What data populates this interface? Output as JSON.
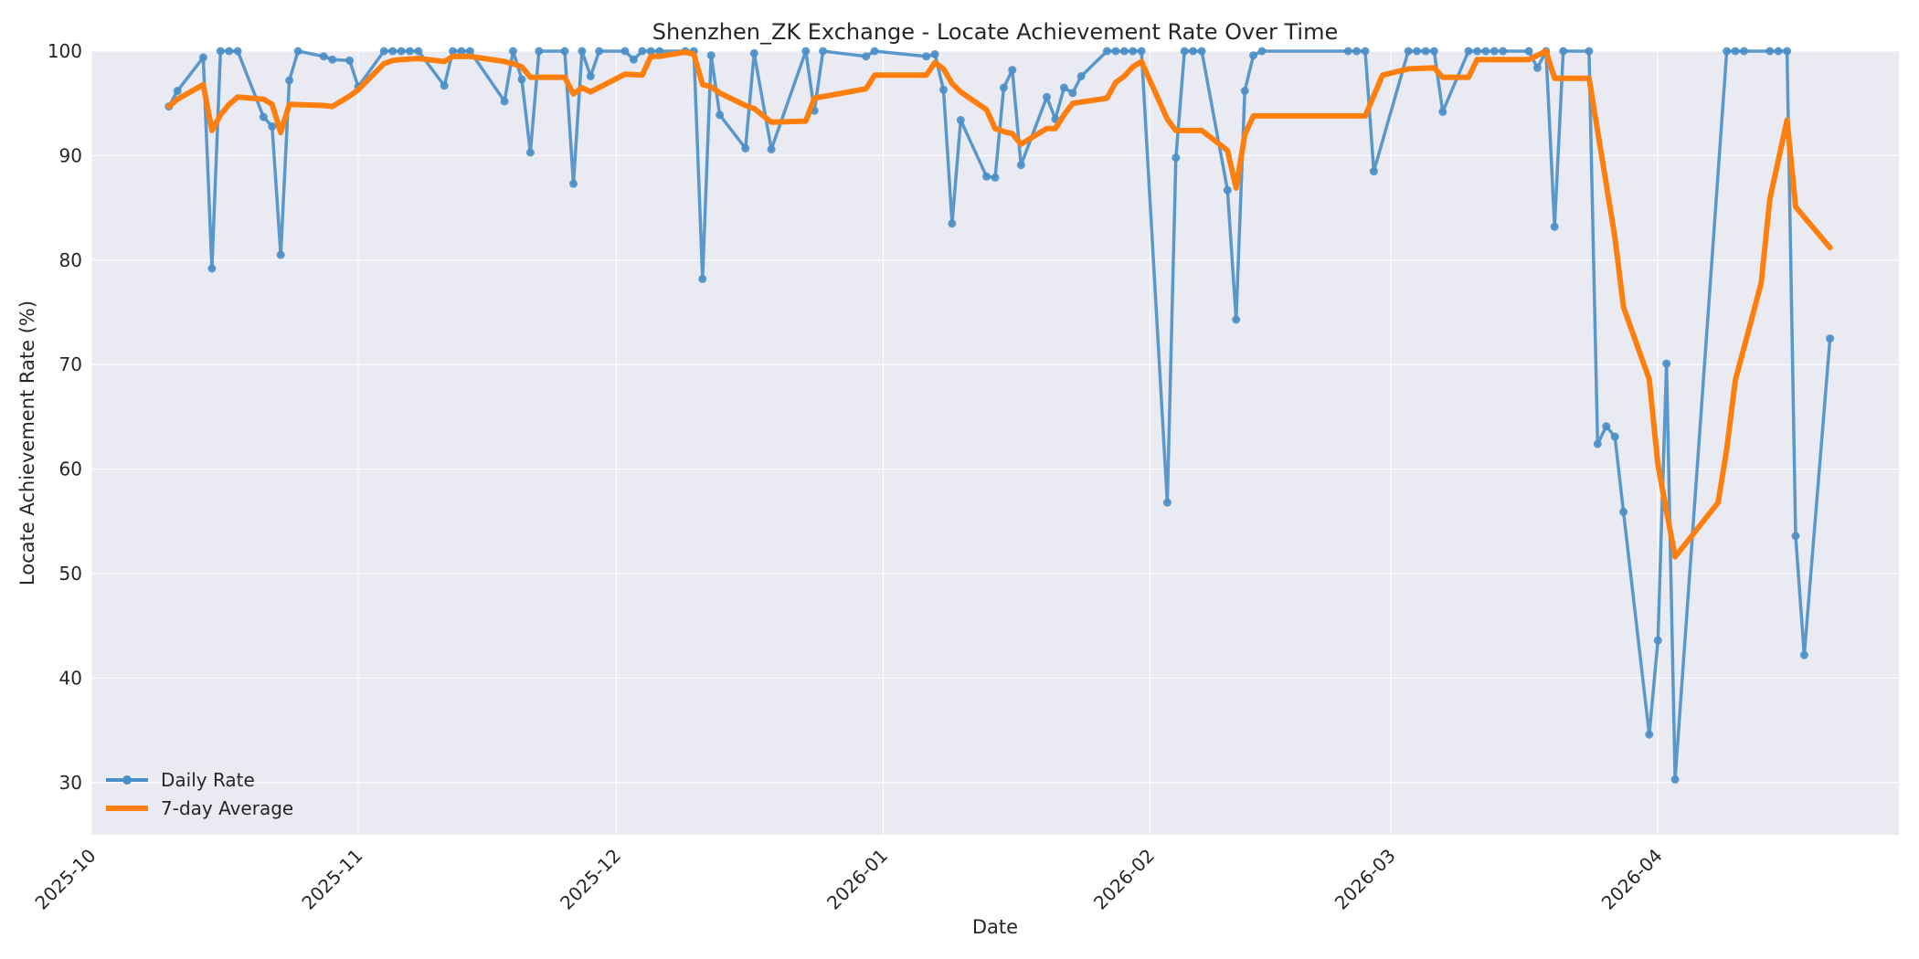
{
  "chart_data": {
    "type": "line",
    "title": "Shenzhen_ZK Exchange - Locate Achievement Rate Over Time",
    "xlabel": "Date",
    "ylabel": "Locate Achievement Rate (%)",
    "xlim": [
      "2025-10-01",
      "2026-04-29"
    ],
    "ylim": [
      25,
      100
    ],
    "x_ticks": [
      "2025-10",
      "2025-11",
      "2025-12",
      "2026-01",
      "2026-02",
      "2026-03",
      "2026-04"
    ],
    "y_ticks": [
      30,
      40,
      50,
      60,
      70,
      80,
      90,
      100
    ],
    "grid": true,
    "legend_position": "lower-left",
    "colors": {
      "daily": "#4a8fc7",
      "average": "#ff7f0e",
      "plot_bg": "#eaeaf2",
      "grid": "#ffffff"
    },
    "series": [
      {
        "name": "Daily Rate",
        "style": "line-with-markers",
        "points": [
          [
            "2025-10-10",
            94.7
          ],
          [
            "2025-10-11",
            96.2
          ],
          [
            "2025-10-14",
            99.4
          ],
          [
            "2025-10-15",
            79.2
          ],
          [
            "2025-10-16",
            100
          ],
          [
            "2025-10-17",
            100
          ],
          [
            "2025-10-18",
            100
          ],
          [
            "2025-10-21",
            93.7
          ],
          [
            "2025-10-22",
            92.8
          ],
          [
            "2025-10-23",
            80.5
          ],
          [
            "2025-10-24",
            97.2
          ],
          [
            "2025-10-25",
            100
          ],
          [
            "2025-10-28",
            99.5
          ],
          [
            "2025-10-29",
            99.2
          ],
          [
            "2025-10-31",
            99.1
          ],
          [
            "2025-11-01",
            96.6
          ],
          [
            "2025-11-04",
            100
          ],
          [
            "2025-11-05",
            100
          ],
          [
            "2025-11-06",
            100
          ],
          [
            "2025-11-07",
            100
          ],
          [
            "2025-11-08",
            100
          ],
          [
            "2025-11-11",
            96.7
          ],
          [
            "2025-11-12",
            100
          ],
          [
            "2025-11-13",
            100
          ],
          [
            "2025-11-14",
            100
          ],
          [
            "2025-11-18",
            95.2
          ],
          [
            "2025-11-19",
            100
          ],
          [
            "2025-11-20",
            97.3
          ],
          [
            "2025-11-21",
            90.3
          ],
          [
            "2025-11-22",
            100
          ],
          [
            "2025-11-25",
            100
          ],
          [
            "2025-11-26",
            87.3
          ],
          [
            "2025-11-27",
            100
          ],
          [
            "2025-11-28",
            97.6
          ],
          [
            "2025-11-29",
            100
          ],
          [
            "2025-12-02",
            100
          ],
          [
            "2025-12-03",
            99.2
          ],
          [
            "2025-12-04",
            100
          ],
          [
            "2025-12-05",
            100
          ],
          [
            "2025-12-06",
            100
          ],
          [
            "2025-12-09",
            100
          ],
          [
            "2025-12-10",
            100
          ],
          [
            "2025-12-11",
            78.2
          ],
          [
            "2025-12-12",
            99.6
          ],
          [
            "2025-12-13",
            93.9
          ],
          [
            "2025-12-16",
            90.7
          ],
          [
            "2025-12-17",
            99.8
          ],
          [
            "2025-12-19",
            90.6
          ],
          [
            "2025-12-23",
            100
          ],
          [
            "2025-12-24",
            94.3
          ],
          [
            "2025-12-25",
            100
          ],
          [
            "2025-12-30",
            99.5
          ],
          [
            "2025-12-31",
            100
          ],
          [
            "2026-01-06",
            99.5
          ],
          [
            "2026-01-07",
            99.7
          ],
          [
            "2026-01-08",
            96.3
          ],
          [
            "2026-01-09",
            83.5
          ],
          [
            "2026-01-10",
            93.4
          ],
          [
            "2026-01-13",
            88
          ],
          [
            "2026-01-14",
            87.9
          ],
          [
            "2026-01-15",
            96.5
          ],
          [
            "2026-01-16",
            98.2
          ],
          [
            "2026-01-17",
            89.1
          ],
          [
            "2026-01-20",
            95.6
          ],
          [
            "2026-01-21",
            93.5
          ],
          [
            "2026-01-22",
            96.5
          ],
          [
            "2026-01-23",
            96
          ],
          [
            "2026-01-24",
            97.6
          ],
          [
            "2026-01-27",
            100
          ],
          [
            "2026-01-28",
            100
          ],
          [
            "2026-01-29",
            100
          ],
          [
            "2026-01-30",
            100
          ],
          [
            "2026-01-31",
            100
          ],
          [
            "2026-02-03",
            56.8
          ],
          [
            "2026-02-04",
            89.8
          ],
          [
            "2026-02-05",
            100
          ],
          [
            "2026-02-06",
            100
          ],
          [
            "2026-02-07",
            100
          ],
          [
            "2026-02-10",
            86.7
          ],
          [
            "2026-02-11",
            74.3
          ],
          [
            "2026-02-12",
            96.2
          ],
          [
            "2026-02-13",
            99.6
          ],
          [
            "2026-02-14",
            100
          ],
          [
            "2026-02-24",
            100
          ],
          [
            "2026-02-25",
            100
          ],
          [
            "2026-02-26",
            100
          ],
          [
            "2026-02-27",
            88.5
          ],
          [
            "2026-03-03",
            100
          ],
          [
            "2026-03-04",
            100
          ],
          [
            "2026-03-05",
            100
          ],
          [
            "2026-03-06",
            100
          ],
          [
            "2026-03-07",
            94.2
          ],
          [
            "2026-03-10",
            100
          ],
          [
            "2026-03-11",
            100
          ],
          [
            "2026-03-12",
            100
          ],
          [
            "2026-03-13",
            100
          ],
          [
            "2026-03-14",
            100
          ],
          [
            "2026-03-17",
            100
          ],
          [
            "2026-03-18",
            98.4
          ],
          [
            "2026-03-19",
            100
          ],
          [
            "2026-03-20",
            83.2
          ],
          [
            "2026-03-21",
            100
          ],
          [
            "2026-03-24",
            100
          ],
          [
            "2026-03-25",
            62.4
          ],
          [
            "2026-03-26",
            64.1
          ],
          [
            "2026-03-27",
            63.1
          ],
          [
            "2026-03-28",
            55.9
          ],
          [
            "2026-03-31",
            34.6
          ],
          [
            "2026-04-01",
            43.6
          ],
          [
            "2026-04-02",
            70.1
          ],
          [
            "2026-04-03",
            30.3
          ],
          [
            "2026-04-09",
            100
          ],
          [
            "2026-04-10",
            100
          ],
          [
            "2026-04-11",
            100
          ],
          [
            "2026-04-14",
            100
          ],
          [
            "2026-04-15",
            100
          ],
          [
            "2026-04-16",
            100
          ],
          [
            "2026-04-17",
            53.6
          ],
          [
            "2026-04-18",
            42.2
          ],
          [
            "2026-04-21",
            72.5
          ]
        ]
      },
      {
        "name": "7-day Average",
        "style": "line",
        "points": [
          [
            "2025-10-10",
            94.7
          ],
          [
            "2025-10-11",
            95.4
          ],
          [
            "2025-10-14",
            96.8
          ],
          [
            "2025-10-15",
            92.4
          ],
          [
            "2025-10-16",
            93.9
          ],
          [
            "2025-10-17",
            94.9
          ],
          [
            "2025-10-18",
            95.6
          ],
          [
            "2025-10-21",
            95.4
          ],
          [
            "2025-10-22",
            94.9
          ],
          [
            "2025-10-23",
            92.2
          ],
          [
            "2025-10-24",
            94.9
          ],
          [
            "2025-10-28",
            94.8
          ],
          [
            "2025-10-29",
            94.7
          ],
          [
            "2025-10-31",
            95.7
          ],
          [
            "2025-11-01",
            96.3
          ],
          [
            "2025-11-04",
            98.8
          ],
          [
            "2025-11-05",
            99.1
          ],
          [
            "2025-11-06",
            99.2
          ],
          [
            "2025-11-08",
            99.3
          ],
          [
            "2025-11-11",
            99.0
          ],
          [
            "2025-11-12",
            99.5
          ],
          [
            "2025-11-14",
            99.5
          ],
          [
            "2025-11-18",
            99.0
          ],
          [
            "2025-11-19",
            98.8
          ],
          [
            "2025-11-20",
            98.5
          ],
          [
            "2025-11-21",
            97.5
          ],
          [
            "2025-11-25",
            97.5
          ],
          [
            "2025-11-26",
            95.9
          ],
          [
            "2025-11-27",
            96.5
          ],
          [
            "2025-11-28",
            96.1
          ],
          [
            "2025-12-02",
            97.8
          ],
          [
            "2025-12-04",
            97.7
          ],
          [
            "2025-12-05",
            99.5
          ],
          [
            "2025-12-06",
            99.5
          ],
          [
            "2025-12-09",
            99.9
          ],
          [
            "2025-12-10",
            99.7
          ],
          [
            "2025-12-11",
            96.8
          ],
          [
            "2025-12-12",
            96.6
          ],
          [
            "2025-12-13",
            96.0
          ],
          [
            "2025-12-16",
            94.8
          ],
          [
            "2025-12-17",
            94.5
          ],
          [
            "2025-12-19",
            93.2
          ],
          [
            "2025-12-23",
            93.3
          ],
          [
            "2025-12-24",
            95.5
          ],
          [
            "2025-12-30",
            96.4
          ],
          [
            "2025-12-31",
            97.7
          ],
          [
            "2026-01-06",
            97.7
          ],
          [
            "2026-01-07",
            98.9
          ],
          [
            "2026-01-08",
            98.3
          ],
          [
            "2026-01-09",
            96.9
          ],
          [
            "2026-01-10",
            96.1
          ],
          [
            "2026-01-13",
            94.4
          ],
          [
            "2026-01-14",
            92.6
          ],
          [
            "2026-01-15",
            92.3
          ],
          [
            "2026-01-16",
            92.1
          ],
          [
            "2026-01-17",
            91.1
          ],
          [
            "2026-01-20",
            92.6
          ],
          [
            "2026-01-21",
            92.6
          ],
          [
            "2026-01-22",
            93.9
          ],
          [
            "2026-01-23",
            95.0
          ],
          [
            "2026-01-27",
            95.5
          ],
          [
            "2026-01-28",
            97.0
          ],
          [
            "2026-01-29",
            97.6
          ],
          [
            "2026-01-30",
            98.5
          ],
          [
            "2026-01-31",
            99.0
          ],
          [
            "2026-02-03",
            93.5
          ],
          [
            "2026-02-04",
            92.4
          ],
          [
            "2026-02-07",
            92.4
          ],
          [
            "2026-02-10",
            90.5
          ],
          [
            "2026-02-11",
            86.9
          ],
          [
            "2026-02-12",
            92.0
          ],
          [
            "2026-02-13",
            93.8
          ],
          [
            "2026-02-26",
            93.8
          ],
          [
            "2026-02-28",
            97.7
          ],
          [
            "2026-03-03",
            98.3
          ],
          [
            "2026-03-06",
            98.4
          ],
          [
            "2026-03-07",
            97.5
          ],
          [
            "2026-03-10",
            97.5
          ],
          [
            "2026-03-11",
            99.2
          ],
          [
            "2026-03-17",
            99.2
          ],
          [
            "2026-03-19",
            100
          ],
          [
            "2026-03-20",
            97.4
          ],
          [
            "2026-03-24",
            97.4
          ],
          [
            "2026-03-27",
            82.2
          ],
          [
            "2026-03-28",
            75.5
          ],
          [
            "2026-03-31",
            68.6
          ],
          [
            "2026-04-01",
            60.4
          ],
          [
            "2026-04-03",
            51.6
          ],
          [
            "2026-04-08",
            56.8
          ],
          [
            "2026-04-09",
            61.9
          ],
          [
            "2026-04-10",
            68.5
          ],
          [
            "2026-04-13",
            77.8
          ],
          [
            "2026-04-14",
            85.8
          ],
          [
            "2026-04-16",
            93.4
          ],
          [
            "2026-04-17",
            85.1
          ],
          [
            "2026-04-21",
            81.2
          ]
        ]
      }
    ]
  }
}
